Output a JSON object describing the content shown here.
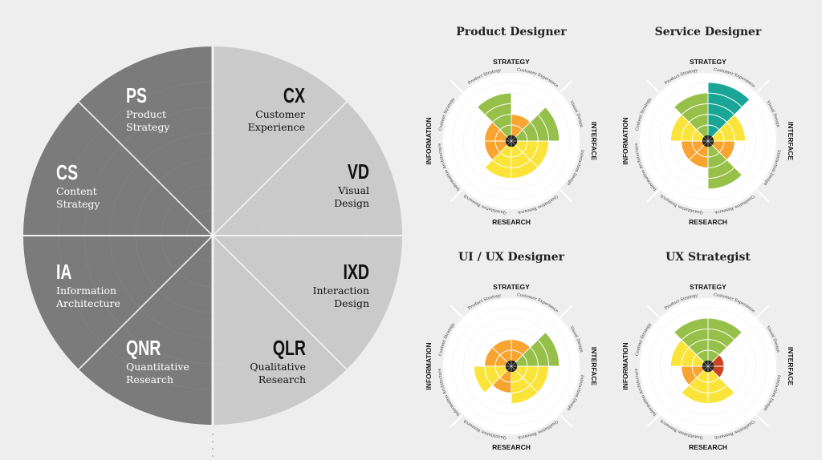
{
  "wheel": {
    "sectors": [
      {
        "key": "CX",
        "abbr": "CX",
        "name_line1": "Customer",
        "name_line2": "Experience"
      },
      {
        "key": "VD",
        "abbr": "VD",
        "name_line1": "Visual",
        "name_line2": "Design"
      },
      {
        "key": "IXD",
        "abbr": "IXD",
        "name_line1": "Interaction",
        "name_line2": "Design"
      },
      {
        "key": "QLR",
        "abbr": "QLR",
        "name_line1": "Qualitative",
        "name_line2": "Research"
      },
      {
        "key": "QNR",
        "abbr": "QNR",
        "name_line1": "Quantitative",
        "name_line2": "Research"
      },
      {
        "key": "IA",
        "abbr": "IA",
        "name_line1": "Information",
        "name_line2": "Architecture"
      },
      {
        "key": "CS",
        "abbr": "CS",
        "name_line1": "Content",
        "name_line2": "Strategy"
      },
      {
        "key": "PS",
        "abbr": "PS",
        "name_line1": "Product",
        "name_line2": "Strategy"
      }
    ],
    "colors": {
      "left_half": "#7b7b7b",
      "right_half": "#cacaca",
      "left_text": "#ffffff",
      "right_text": "#111111"
    }
  },
  "profile_labels": {
    "categories": {
      "top": "STRATEGY",
      "right": "INTERFACE",
      "bottom": "RESEARCH",
      "left": "INFORMATION"
    },
    "skills": [
      "Customer Experience",
      "Visual Design",
      "Interaction Design",
      "Qualitative Research",
      "Quantitative Research",
      "Information Architecture",
      "Content Strategy",
      "Product Strategy"
    ]
  },
  "level_colors": {
    "1": "#cc4422",
    "2": "#f7a430",
    "3": "#fbe43a",
    "4": "#97c04a",
    "5": "#1aa697"
  },
  "chart_data": [
    {
      "type": "polar-bar",
      "title": "Product Designer",
      "levels_max": 5,
      "categories": [
        "CX",
        "VD",
        "IXD",
        "QLR",
        "QNR",
        "IA",
        "CS",
        "PS"
      ],
      "values": [
        2,
        4,
        3,
        3,
        3,
        2,
        2,
        4
      ]
    },
    {
      "type": "polar-bar",
      "title": "Service Designer",
      "levels_max": 5,
      "categories": [
        "CX",
        "VD",
        "IXD",
        "QLR",
        "QNR",
        "IA",
        "CS",
        "PS"
      ],
      "values": [
        5,
        3,
        2,
        4,
        2,
        2,
        3,
        4
      ]
    },
    {
      "type": "polar-bar",
      "title": "UI / UX Designer",
      "levels_max": 5,
      "categories": [
        "CX",
        "VD",
        "IXD",
        "QLR",
        "QNR",
        "IA",
        "CS",
        "PS"
      ],
      "values": [
        2,
        4,
        3,
        3,
        2,
        3,
        2,
        2
      ]
    },
    {
      "type": "polar-bar",
      "title": "UX Strategist",
      "levels_max": 5,
      "categories": [
        "CX",
        "VD",
        "IXD",
        "QLR",
        "QNR",
        "IA",
        "CS",
        "PS"
      ],
      "values": [
        4,
        1,
        1,
        3,
        3,
        2,
        3,
        4
      ]
    }
  ]
}
